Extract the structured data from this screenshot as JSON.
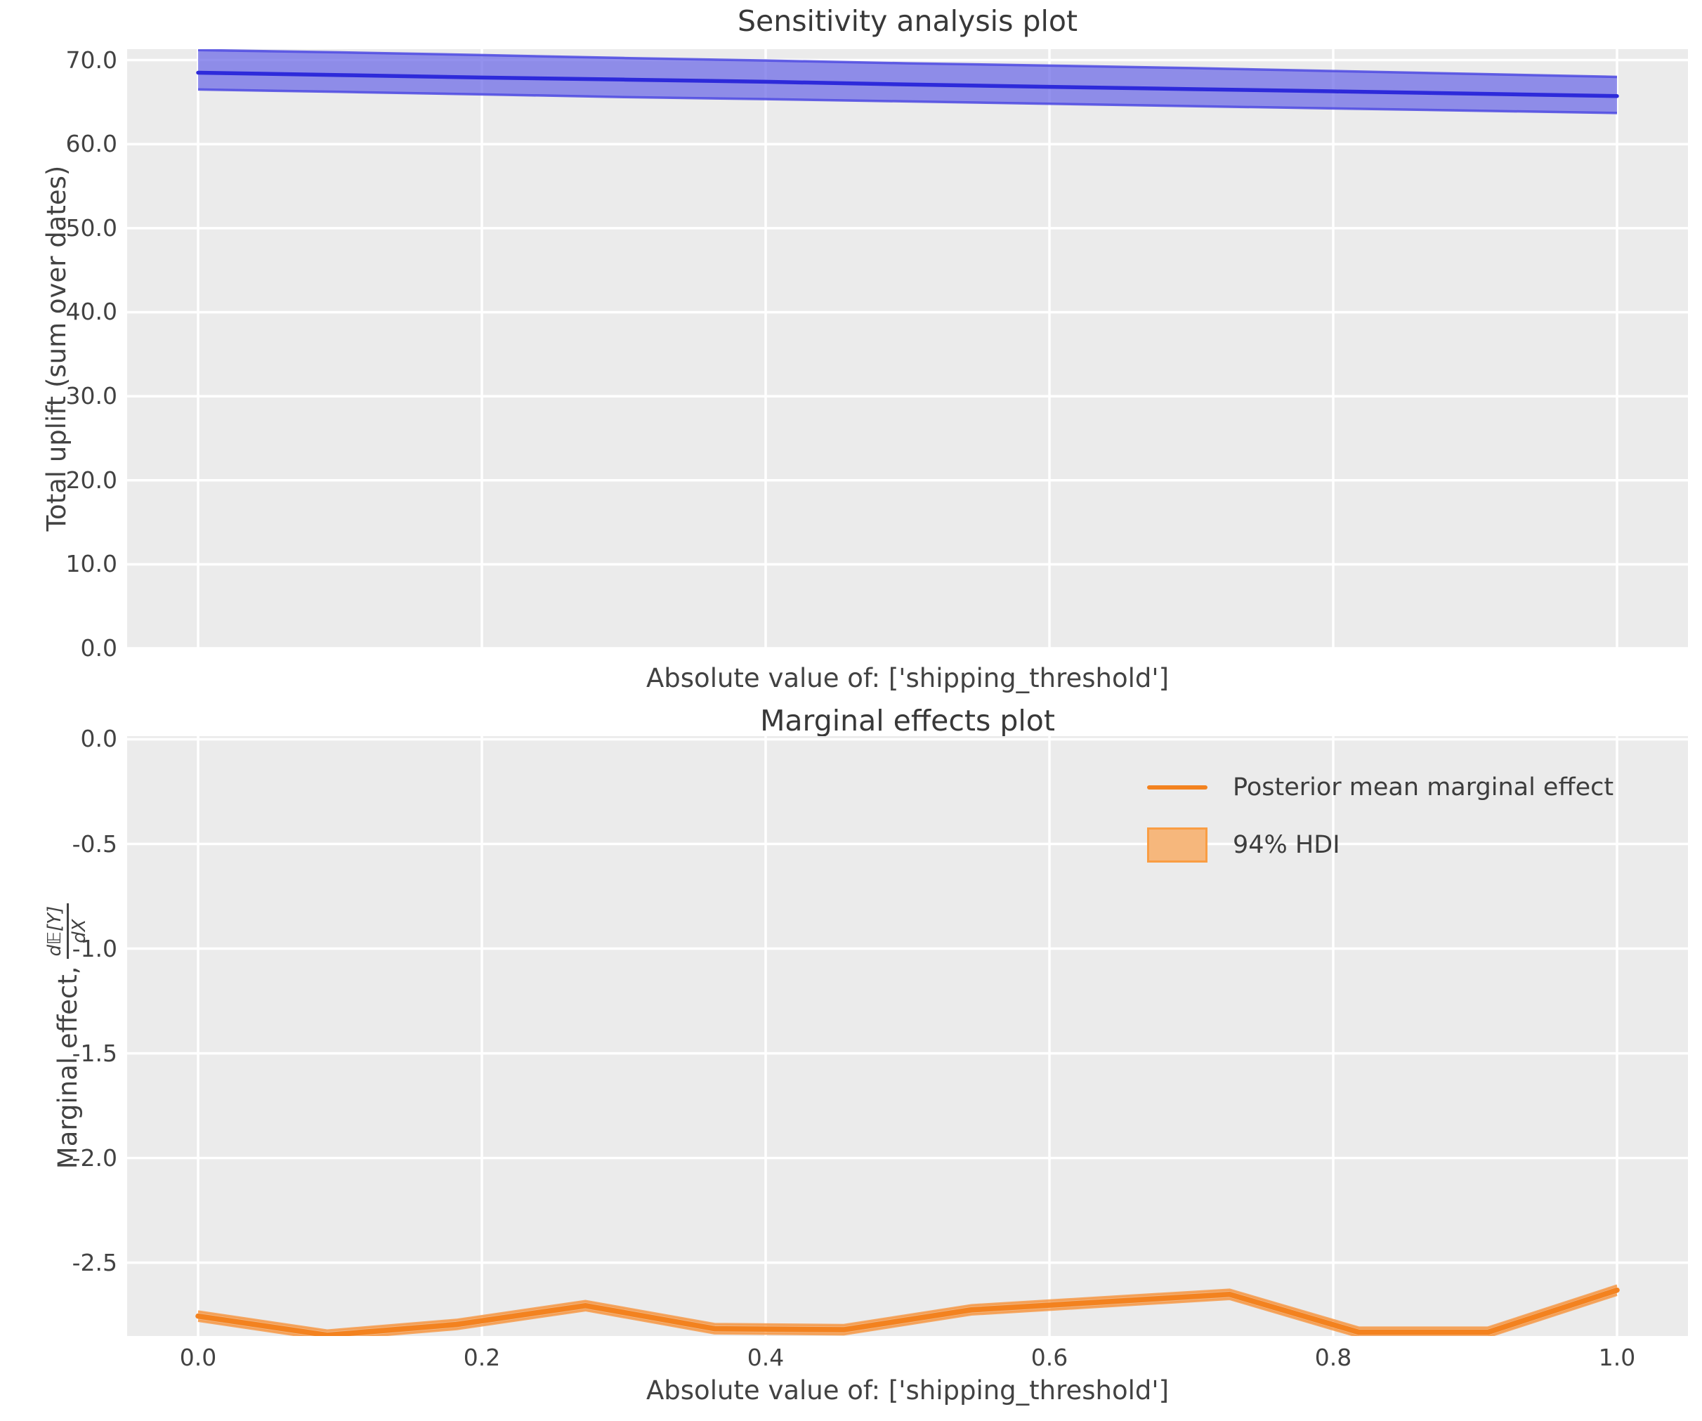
{
  "figure": {
    "bg": "#ffffff",
    "axes_bg": "#ebebeb",
    "grid_color": "#ffffff",
    "text_color": "#424242"
  },
  "chart_data": [
    {
      "type": "line",
      "title": "Sensitivity analysis plot",
      "xlabel": "Absolute value of: ['shipping_threshold']",
      "ylabel": "Total uplift (sum over dates)",
      "grid": true,
      "xlim": [
        -0.05,
        1.05
      ],
      "ylim": [
        0,
        71.3
      ],
      "line_color": "#2d2ada",
      "band_fill": "#6a67e6",
      "band_edge": "#4d4ae2",
      "band_opacity": 0.72,
      "x": [
        0,
        0.1,
        0.2,
        0.3,
        0.4,
        0.5,
        0.6,
        0.7,
        0.8,
        0.9,
        1.0
      ],
      "mean": [
        68.5,
        68.22,
        67.93,
        67.68,
        67.42,
        67.1,
        66.82,
        66.55,
        66.28,
        66.0,
        65.72
      ],
      "hdi_hi": [
        71.2,
        70.92,
        70.6,
        70.25,
        69.95,
        69.62,
        69.35,
        69.05,
        68.7,
        68.35,
        68.0
      ],
      "hdi_lo": [
        66.5,
        66.22,
        65.92,
        65.6,
        65.35,
        65.08,
        64.8,
        64.52,
        64.25,
        63.98,
        63.7
      ],
      "yticks": [
        {
          "v": 70,
          "label": "70.0"
        },
        {
          "v": 60,
          "label": "60.0"
        },
        {
          "v": 50,
          "label": "50.0"
        },
        {
          "v": 40,
          "label": "40.0"
        },
        {
          "v": 30,
          "label": "30.0"
        },
        {
          "v": 20,
          "label": "20.0"
        },
        {
          "v": 10,
          "label": "10.0"
        },
        {
          "v": 0,
          "label": "0.0"
        }
      ],
      "xticks": [
        {
          "v": 0.0,
          "label": ""
        },
        {
          "v": 0.2,
          "label": ""
        },
        {
          "v": 0.4,
          "label": ""
        },
        {
          "v": 0.6,
          "label": ""
        },
        {
          "v": 0.8,
          "label": ""
        },
        {
          "v": 1.0,
          "label": ""
        }
      ]
    },
    {
      "type": "line",
      "title": "Marginal effects plot",
      "xlabel": "Absolute value of: ['shipping_threshold']",
      "ylabel_prefix": "Marginal effect,",
      "ylabel_frac_num": "d𝔼[Y]",
      "ylabel_frac_den": "dX",
      "grid": true,
      "xlim": [
        -0.05,
        1.05
      ],
      "ylim": [
        -2.85,
        0.015
      ],
      "line_color": "#f3821f",
      "band_fill": "#f5811c",
      "band_edge": "#f69a4a",
      "band_opacity": 0.5,
      "x": [
        0.0,
        0.091,
        0.182,
        0.273,
        0.364,
        0.455,
        0.545,
        0.636,
        0.727,
        0.818,
        0.909,
        1.0
      ],
      "mean": [
        -2.755,
        -2.846,
        -2.795,
        -2.705,
        -2.815,
        -2.82,
        -2.725,
        -2.688,
        -2.651,
        -2.832,
        -2.832,
        -2.631
      ],
      "hdi_hi": [
        -2.733,
        -2.824,
        -2.773,
        -2.683,
        -2.793,
        -2.798,
        -2.703,
        -2.666,
        -2.629,
        -2.81,
        -2.81,
        -2.609
      ],
      "hdi_lo": [
        -2.777,
        -2.868,
        -2.817,
        -2.727,
        -2.837,
        -2.842,
        -2.747,
        -2.71,
        -2.673,
        -2.854,
        -2.854,
        -2.653
      ],
      "yticks": [
        {
          "v": 0.0,
          "label": "0.0"
        },
        {
          "v": -0.5,
          "label": "-0.5"
        },
        {
          "v": -1.0,
          "label": "-1.0"
        },
        {
          "v": -1.5,
          "label": "-1.5"
        },
        {
          "v": -2.0,
          "label": "-2.0"
        },
        {
          "v": -2.5,
          "label": "-2.5"
        }
      ],
      "xticks": [
        {
          "v": 0.0,
          "label": "0.0"
        },
        {
          "v": 0.2,
          "label": "0.2"
        },
        {
          "v": 0.4,
          "label": "0.4"
        },
        {
          "v": 0.6,
          "label": "0.6"
        },
        {
          "v": 0.8,
          "label": "0.8"
        },
        {
          "v": 1.0,
          "label": "1.0"
        }
      ],
      "legend": [
        {
          "swatch": "line",
          "label": "Posterior mean marginal effect"
        },
        {
          "swatch": "patch",
          "label": "94% HDI",
          "patch_fill": "#f6b77c",
          "patch_edge": "#f99d43"
        }
      ]
    }
  ]
}
